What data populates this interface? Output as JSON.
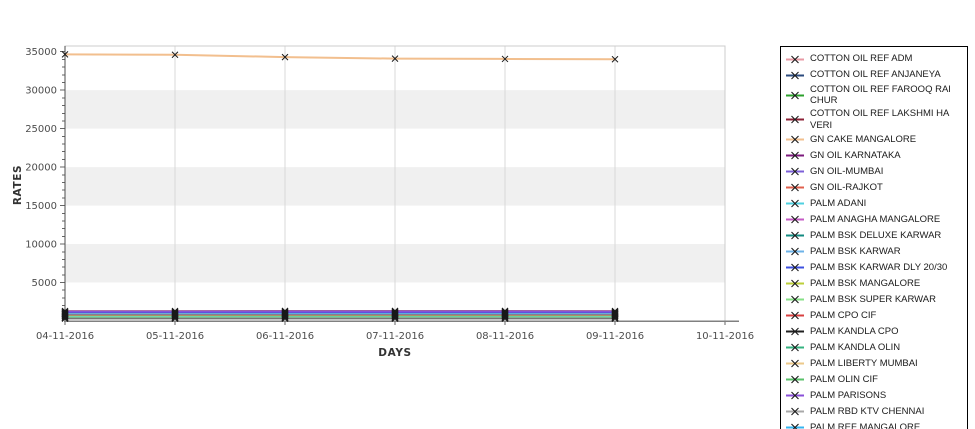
{
  "chart": {
    "y_axis_title": "RATES",
    "x_axis_title": "DAYS",
    "y_ticks": [
      5000,
      10000,
      15000,
      20000,
      25000,
      30000,
      35000
    ],
    "x_ticks": [
      "04-11-2016",
      "05-11-2016",
      "06-11-2016",
      "07-11-2016",
      "08-11-2016",
      "09-11-2016",
      "10-11-2016"
    ]
  },
  "chart_data": {
    "type": "line",
    "title": "",
    "xlabel": "DAYS",
    "ylabel": "RATES",
    "x": [
      "04-11-2016",
      "05-11-2016",
      "06-11-2016",
      "07-11-2016",
      "08-11-2016",
      "09-11-2016"
    ],
    "x_axis_tick_labels": [
      "04-11-2016",
      "05-11-2016",
      "06-11-2016",
      "07-11-2016",
      "08-11-2016",
      "09-11-2016",
      "10-11-2016"
    ],
    "ylim": [
      0,
      35700
    ],
    "grid": "vertical gridlines at each date; alternating horizontal gray bands every 5000",
    "legend_position": "right",
    "marker": "x",
    "note": "Bottom-cluster series overlap between ~300 and ~1350; values estimated from pixels",
    "style": {
      "band_fill": "#f0f0f0",
      "grid_color": "#d9d9d9",
      "plot_border": "#cccccc",
      "y_axis_color": "#4d4d4d",
      "x_axis_color": "#808080",
      "tick_label_color": "#4d4d4d",
      "marker_color": "#1a1a1a"
    },
    "series": [
      {
        "name": "COTTON OIL REF ADM",
        "color": "#e89aa4",
        "stroke_width": 1.2,
        "values": [
          880,
          880,
          880,
          880,
          880,
          880
        ]
      },
      {
        "name": "COTTON OIL REF ANJANEYA",
        "color": "#2b4a7d",
        "stroke_width": 1.2,
        "values": [
          990,
          990,
          1000,
          1000,
          1000,
          990
        ]
      },
      {
        "name": "COTTON OIL REF FAROOQ RAI CHUR",
        "color": "#2ca02c",
        "stroke_width": 1.2,
        "values": [
          480,
          480,
          490,
          490,
          490,
          480
        ]
      },
      {
        "name": "COTTON OIL REF LAKSHMI HA VERI",
        "color": "#8c2036",
        "stroke_width": 1.2,
        "values": [
          850,
          850,
          850,
          850,
          850,
          850
        ]
      },
      {
        "name": "GN CAKE MANGALORE",
        "color": "#f2bf8e",
        "stroke_width": 2.0,
        "values": [
          34650,
          34600,
          34300,
          34100,
          34060,
          34020
        ]
      },
      {
        "name": "GN OIL KARNATAKA",
        "color": "#7c1a7c",
        "stroke_width": 1.2,
        "values": [
          1300,
          1300,
          1320,
          1320,
          1320,
          1300
        ]
      },
      {
        "name": "GN OIL-MUMBAI",
        "color": "#7d60d8",
        "stroke_width": 1.2,
        "values": [
          1220,
          1220,
          1240,
          1240,
          1240,
          1220
        ]
      },
      {
        "name": "GN OIL-RAJKOT",
        "color": "#e0604d",
        "stroke_width": 1.2,
        "values": [
          1080,
          1080,
          1080,
          1080,
          1080,
          1080
        ]
      },
      {
        "name": "PALM ADANI",
        "color": "#4fd0e0",
        "stroke_width": 1.4,
        "values": [
          620,
          620,
          630,
          630,
          630,
          620
        ]
      },
      {
        "name": "PALM ANAGHA MANGALORE",
        "color": "#c55ac5",
        "stroke_width": 1.2,
        "values": [
          1150,
          1150,
          1160,
          1160,
          1160,
          1150
        ]
      },
      {
        "name": "PALM BSK DELUXE KARWAR",
        "color": "#128a80",
        "stroke_width": 1.2,
        "values": [
          700,
          700,
          710,
          710,
          710,
          700
        ]
      },
      {
        "name": "PALM BSK KARWAR",
        "color": "#6db3e8",
        "stroke_width": 1.2,
        "values": [
          960,
          960,
          970,
          970,
          970,
          960
        ]
      },
      {
        "name": "PALM BSK KARWAR DLY 20/30",
        "color": "#3c50e0",
        "stroke_width": 2.6,
        "values": [
          980,
          980,
          1010,
          1015,
          1015,
          1005
        ]
      },
      {
        "name": "PALM BSK MANGALORE",
        "color": "#bccf3a",
        "stroke_width": 1.2,
        "values": [
          740,
          740,
          740,
          740,
          740,
          740
        ]
      },
      {
        "name": "PALM BSK SUPER KARWAR",
        "color": "#86e086",
        "stroke_width": 1.2,
        "values": [
          660,
          660,
          670,
          670,
          670,
          660
        ]
      },
      {
        "name": "PALM CPO CIF",
        "color": "#d84040",
        "stroke_width": 1.2,
        "values": [
          800,
          800,
          800,
          800,
          800,
          800
        ]
      },
      {
        "name": "PALM KANDLA CPO",
        "color": "#202020",
        "stroke_width": 1.2,
        "values": [
          300,
          300,
          310,
          310,
          310,
          300
        ]
      },
      {
        "name": "PALM KANDLA OLIN",
        "color": "#35b380",
        "stroke_width": 1.2,
        "values": [
          450,
          450,
          460,
          460,
          460,
          450
        ]
      },
      {
        "name": "PALM LIBERTY MUMBAI",
        "color": "#ecc98a",
        "stroke_width": 1.2,
        "values": [
          940,
          940,
          940,
          940,
          940,
          940
        ]
      },
      {
        "name": "PALM OLIN CIF",
        "color": "#59c26a",
        "stroke_width": 1.2,
        "values": [
          420,
          420,
          430,
          430,
          430,
          420
        ]
      },
      {
        "name": "PALM PARISONS",
        "color": "#8a4fd8",
        "stroke_width": 1.2,
        "values": [
          1180,
          1180,
          1190,
          1190,
          1190,
          1180
        ]
      },
      {
        "name": "PALM RBD KTV CHENNAI",
        "color": "#a8a8a8",
        "stroke_width": 1.2,
        "values": [
          380,
          380,
          390,
          390,
          390,
          380
        ]
      },
      {
        "name": "PALM REF MANGALORE",
        "color": "#35b5f0",
        "stroke_width": 1.2,
        "values": [
          920,
          920,
          930,
          930,
          930,
          920
        ]
      }
    ]
  }
}
